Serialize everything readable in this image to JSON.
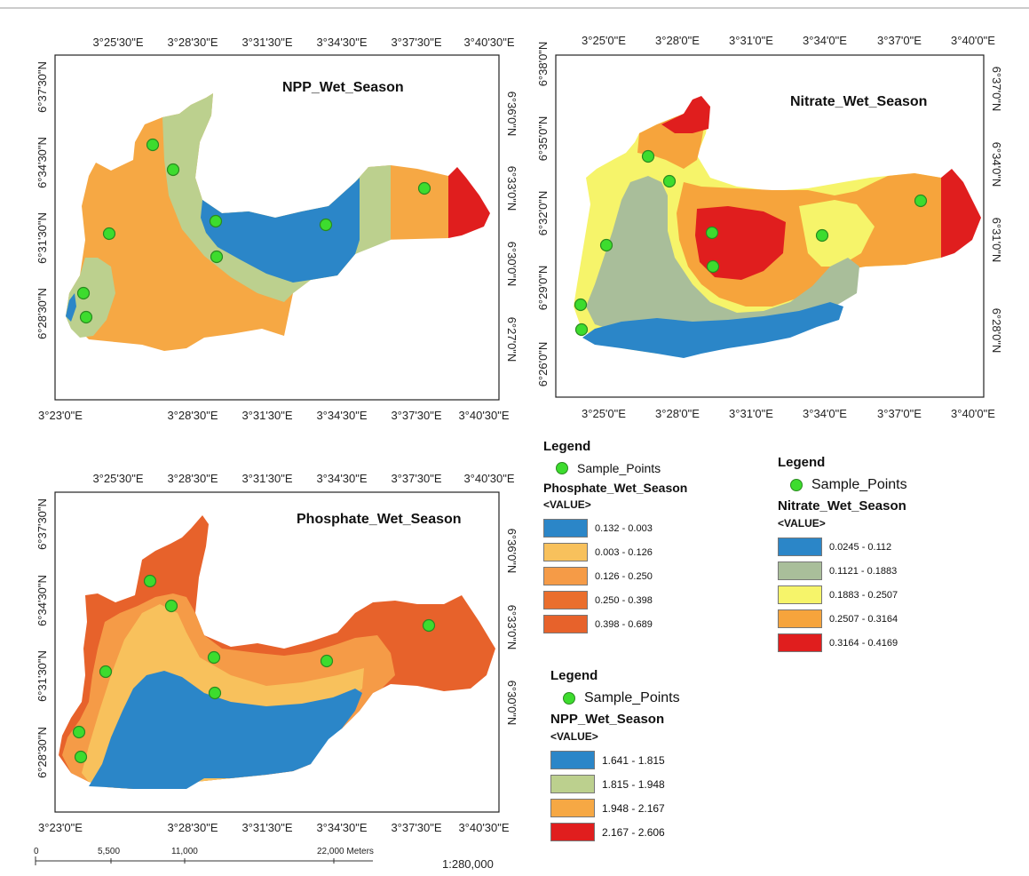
{
  "panels": {
    "npp": {
      "title": "NPP_Wet_Season",
      "top_ticks": [
        "3°25'30\"E",
        "3°28'30\"E",
        "3°31'30\"E",
        "3°34'30\"E",
        "3°37'30\"E",
        "3°40'30\"E"
      ],
      "bottom_ticks": [
        "3°23'0\"E",
        "3°28'30\"E",
        "3°31'30\"E",
        "3°34'30\"E",
        "3°37'30\"E",
        "3°40'30\"E"
      ],
      "left_ticks": [
        "6°37'30\"N",
        "6°34'30\"N",
        "6°31'30\"N",
        "6°28'30\"N"
      ],
      "right_ticks": [
        "6°36'0\"N",
        "6°33'0\"N",
        "6°30'0\"N",
        "6°27'0\"N"
      ]
    },
    "nitrate": {
      "title": "Nitrate_Wet_Season",
      "top_ticks": [
        "3°25'0\"E",
        "3°28'0\"E",
        "3°31'0\"E",
        "3°34'0\"E",
        "3°37'0\"E",
        "3°40'0\"E"
      ],
      "bottom_ticks": [
        "3°25'0\"E",
        "3°28'0\"E",
        "3°31'0\"E",
        "3°34'0\"E",
        "3°37'0\"E",
        "3°40'0\"E"
      ],
      "left_ticks": [
        "6°38'0\"N",
        "6°35'0\"N",
        "6°32'0\"N",
        "6°29'0\"N",
        "6°26'0\"N"
      ],
      "right_ticks": [
        "6°37'0\"N",
        "6°34'0\"N",
        "6°31'0\"N",
        "6°28'0\"N"
      ]
    },
    "phosphate": {
      "title": "Phosphate_Wet_Season",
      "top_ticks": [
        "3°25'30\"E",
        "3°28'30\"E",
        "3°31'30\"E",
        "3°34'30\"E",
        "3°37'30\"E",
        "3°40'30\"E"
      ],
      "bottom_ticks": [
        "3°23'0\"E",
        "3°28'30\"E",
        "3°31'30\"E",
        "3°34'30\"E",
        "3°37'30\"E",
        "3°40'30\"E"
      ],
      "left_ticks": [
        "6°37'30\"N",
        "6°34'30\"N",
        "6°31'30\"N",
        "6°28'30\"N"
      ],
      "right_ticks": [
        "6°36'0\"N",
        "6°33'0\"N",
        "6°30'0\"N"
      ]
    }
  },
  "legends": {
    "phosphate": {
      "heading": "Legend",
      "sample": "Sample_Points",
      "layer": "Phosphate_Wet_Season",
      "value_label": "<VALUE>",
      "classes": [
        {
          "label": "0.132 - 0.003",
          "color": "#2b86c8"
        },
        {
          "label": "0.003 - 0.126",
          "color": "#f8c15c"
        },
        {
          "label": "0.126 - 0.250",
          "color": "#f59b47"
        },
        {
          "label": "0.250 - 0.398",
          "color": "#ea6e2d"
        },
        {
          "label": "0.398 - 0.689",
          "color": "#e7622b"
        }
      ]
    },
    "nitrate": {
      "heading": "Legend",
      "sample": "Sample_Points",
      "layer": "Nitrate_Wet_Season",
      "value_label": "<VALUE>",
      "classes": [
        {
          "label": "0.0245 - 0.112",
          "color": "#2b86c8"
        },
        {
          "label": "0.1121 - 0.1883",
          "color": "#a9be9a"
        },
        {
          "label": "0.1883 - 0.2507",
          "color": "#f6f46a"
        },
        {
          "label": "0.2507 - 0.3164",
          "color": "#f6a43c"
        },
        {
          "label": "0.3164 - 0.4169",
          "color": "#e01e1e"
        }
      ]
    },
    "npp": {
      "heading": "Legend",
      "sample": "Sample_Points",
      "layer": "NPP_Wet_Season",
      "value_label": "<VALUE>",
      "classes": [
        {
          "label": "1.641 - 1.815",
          "color": "#2b86c8"
        },
        {
          "label": "1.815 - 1.948",
          "color": "#bcd08e"
        },
        {
          "label": "1.948 - 2.167",
          "color": "#f6a844"
        },
        {
          "label": "2.167 - 2.606",
          "color": "#e01e1e"
        }
      ]
    }
  },
  "scalebar": {
    "labels": [
      "0",
      "5,500",
      "11,000",
      "22,000 Meters"
    ],
    "ratio": "1:280,000"
  }
}
